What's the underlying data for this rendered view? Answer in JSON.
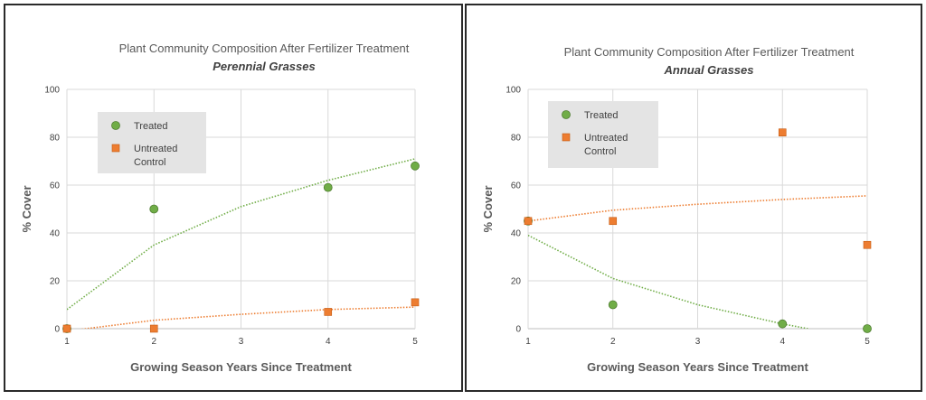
{
  "chart_data": [
    {
      "type": "scatter",
      "title": "Plant Community Composition After Fertilizer Treatment",
      "subtitle": "Perennial Grasses",
      "xlabel": "Growing Season Years Since Treatment",
      "ylabel": "% Cover",
      "xlim": [
        1,
        5
      ],
      "ylim": [
        0,
        100
      ],
      "xticks": [
        "1",
        "2",
        "3",
        "4",
        "5"
      ],
      "yticks": [
        "0",
        "20",
        "40",
        "60",
        "80",
        "100"
      ],
      "grid": true,
      "legend_position": "top-left",
      "series": [
        {
          "name": "Treated",
          "color": "#70ad47",
          "marker": "circle",
          "x": [
            1,
            2,
            4,
            5
          ],
          "y": [
            0,
            50,
            59,
            68
          ],
          "trendline": "logarithmic",
          "trend_points": [
            [
              1,
              8
            ],
            [
              2,
              35
            ],
            [
              3,
              51
            ],
            [
              4,
              62
            ],
            [
              5,
              71
            ]
          ]
        },
        {
          "name": "Untreated Control",
          "legend_lines": [
            "Untreated",
            "Control"
          ],
          "color": "#ed7d31",
          "marker": "square",
          "x": [
            1,
            2,
            4,
            5
          ],
          "y": [
            0,
            0,
            7,
            11
          ],
          "trendline": "logarithmic",
          "trend_points": [
            [
              1,
              -1
            ],
            [
              2,
              3.5
            ],
            [
              3,
              6
            ],
            [
              4,
              8
            ],
            [
              5,
              9
            ]
          ]
        }
      ]
    },
    {
      "type": "scatter",
      "title": "Plant Community Composition After Fertilizer Treatment",
      "subtitle": "Annual Grasses",
      "xlabel": "Growing Season Years Since Treatment",
      "ylabel": "% Cover",
      "xlim": [
        1,
        5
      ],
      "ylim": [
        0,
        100
      ],
      "xticks": [
        "1",
        "2",
        "3",
        "4",
        "5"
      ],
      "yticks": [
        "0",
        "20",
        "40",
        "60",
        "80",
        "100"
      ],
      "grid": true,
      "legend_position": "top-left",
      "series": [
        {
          "name": "Treated",
          "color": "#70ad47",
          "marker": "circle",
          "x": [
            1,
            2,
            4,
            5
          ],
          "y": [
            45,
            10,
            2,
            0
          ],
          "trendline": "logarithmic",
          "trend_points": [
            [
              1,
              39
            ],
            [
              2,
              21
            ],
            [
              3,
              10
            ],
            [
              4,
              2
            ],
            [
              4.3,
              0
            ]
          ]
        },
        {
          "name": "Untreated Control",
          "legend_lines": [
            "Untreated",
            "Control"
          ],
          "color": "#ed7d31",
          "marker": "square",
          "x": [
            1,
            2,
            4,
            5
          ],
          "y": [
            45,
            45,
            82,
            35
          ],
          "trendline": "logarithmic",
          "trend_points": [
            [
              1,
              45
            ],
            [
              2,
              49.5
            ],
            [
              3,
              52
            ],
            [
              4,
              54
            ],
            [
              5,
              55.5
            ]
          ]
        }
      ]
    }
  ]
}
